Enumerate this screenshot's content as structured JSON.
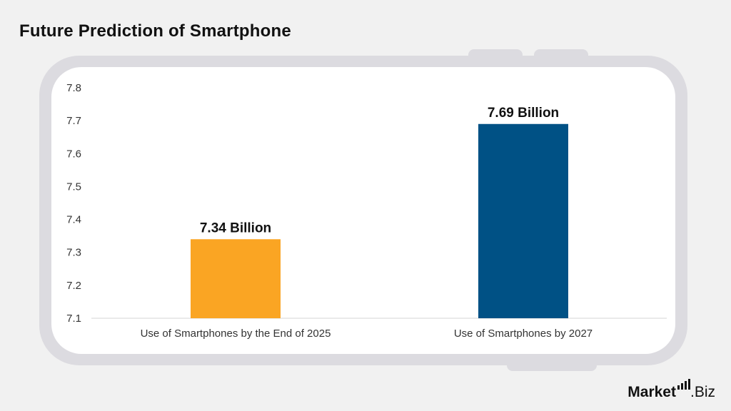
{
  "chart_data": {
    "type": "bar",
    "title": "Future Prediction of Smartphone",
    "categories": [
      "Use of Smartphones by the End of 2025",
      "Use of Smartphones by 2027"
    ],
    "values": [
      7.34,
      7.69
    ],
    "data_labels": [
      "7.34 Billion",
      "7.69 Billion"
    ],
    "colors": [
      "#faa523",
      "#005185"
    ],
    "ylim": [
      7.1,
      7.8
    ],
    "yticks": [
      "7.1",
      "7.2",
      "7.3",
      "7.4",
      "7.5",
      "7.6",
      "7.7",
      "7.8"
    ],
    "xlabel": "",
    "ylabel": "",
    "grid": false,
    "legend": "none"
  },
  "brand": {
    "logo_text_main": "Market",
    "logo_text_suffix": ".Biz"
  }
}
